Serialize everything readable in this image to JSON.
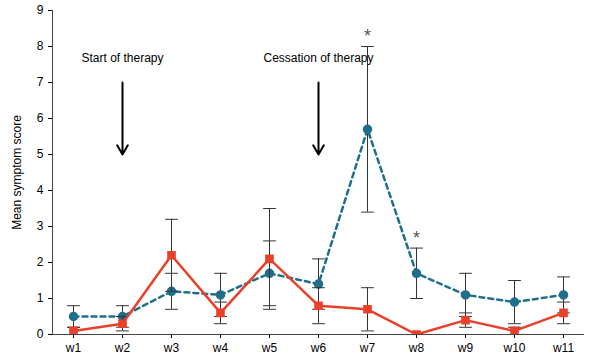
{
  "chart_data": {
    "type": "line",
    "y_label": "Mean symptom score",
    "categories": [
      "w1",
      "w2",
      "w3",
      "w4",
      "w5",
      "w6",
      "w7",
      "w8",
      "w9",
      "w10",
      "w11"
    ],
    "ylim": [
      0,
      9
    ],
    "yticks": [
      0,
      1,
      2,
      3,
      4,
      5,
      6,
      7,
      8,
      9
    ],
    "grid": false,
    "series": [
      {
        "color": "#1f6f8b",
        "marker": "circle",
        "line_style": "dashed",
        "values": [
          0.5,
          0.5,
          1.2,
          1.1,
          1.7,
          1.4,
          5.7,
          1.7,
          1.1,
          0.9,
          1.1
        ],
        "errors": [
          0.3,
          0.3,
          0.5,
          0.6,
          0.9,
          0.7,
          2.3,
          0.7,
          0.6,
          0.6,
          0.5
        ]
      },
      {
        "color": "#e8402a",
        "marker": "square",
        "line_style": "solid",
        "values": [
          0.1,
          0.3,
          2.2,
          0.6,
          2.1,
          0.8,
          0.7,
          0.0,
          0.4,
          0.1,
          0.6
        ],
        "errors": [
          0.1,
          0.2,
          1.0,
          0.3,
          1.4,
          0.5,
          0.6,
          0.0,
          0.2,
          0.1,
          0.3
        ]
      }
    ],
    "annotations": [
      {
        "text": "Start of therapy",
        "x": "w2"
      },
      {
        "text": "Cessation of therapy",
        "x": "w6"
      },
      {
        "text": "*",
        "x": "w7"
      },
      {
        "text": "*",
        "x": "w8"
      }
    ]
  }
}
